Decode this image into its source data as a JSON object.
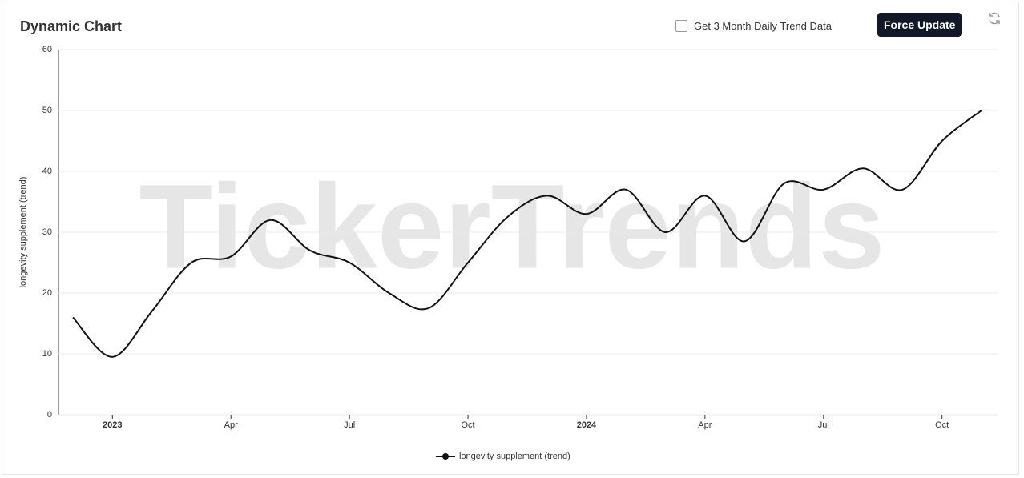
{
  "header": {
    "title": "Dynamic Chart",
    "checkbox_label": "Get 3 Month Daily Trend Data",
    "button": "Force Update"
  },
  "watermark": "TickerTrends",
  "chart_data": {
    "type": "line",
    "ylabel": "longevity supplement  (trend)",
    "x": [
      "2022-12",
      "2023-01",
      "2023-02",
      "2023-03",
      "2023-04",
      "2023-05",
      "2023-06",
      "2023-07",
      "2023-08",
      "2023-09",
      "2023-10",
      "2023-11",
      "2023-12",
      "2024-01",
      "2024-02",
      "2024-03",
      "2024-04",
      "2024-05",
      "2024-06",
      "2024-07",
      "2024-08",
      "2024-09",
      "2024-10",
      "2024-11"
    ],
    "series": [
      {
        "name": "longevity supplement  (trend)",
        "color": "#111111",
        "values": [
          16,
          9.5,
          17,
          25,
          26,
          32,
          27,
          25,
          20,
          17.5,
          25,
          32.5,
          36,
          33,
          37,
          30,
          36,
          28.5,
          38,
          37,
          40.5,
          37,
          45,
          50
        ]
      }
    ],
    "xlim": [
      "2022-12",
      "2024-11"
    ],
    "xticks": [
      {
        "value": "2023-01",
        "label": "2023"
      },
      {
        "value": "2023-04",
        "label": "Apr"
      },
      {
        "value": "2023-07",
        "label": "Jul"
      },
      {
        "value": "2023-10",
        "label": "Oct"
      },
      {
        "value": "2024-01",
        "label": "2024"
      },
      {
        "value": "2024-04",
        "label": "Apr"
      },
      {
        "value": "2024-07",
        "label": "Jul"
      },
      {
        "value": "2024-10",
        "label": "Oct"
      }
    ],
    "ylim": [
      0,
      60
    ],
    "yticks": [
      0,
      10,
      20,
      30,
      40,
      50,
      60
    ],
    "grid": true
  }
}
